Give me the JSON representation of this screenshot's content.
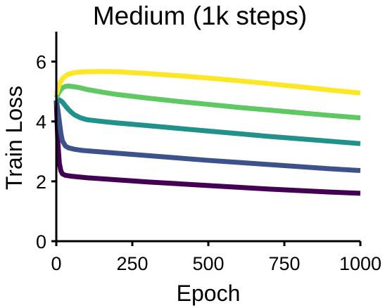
{
  "chart_data": {
    "type": "line",
    "title": "Medium (1k steps)",
    "xlabel": "Epoch",
    "ylabel": "Train Loss",
    "xlim": [
      0,
      1000
    ],
    "ylim": [
      0,
      7
    ],
    "xticks": [
      0,
      250,
      500,
      750,
      1000
    ],
    "yticks": [
      0,
      2,
      4,
      6
    ],
    "xtick_labels": [
      "0",
      "250",
      "500",
      "750",
      "1000"
    ],
    "ytick_labels": [
      "0",
      "2",
      "4",
      "6"
    ],
    "grid": false,
    "legend": "none",
    "series": [
      {
        "color": "#440154",
        "x": [
          0,
          5,
          10,
          15,
          20,
          30,
          50,
          100,
          200,
          300,
          400,
          500,
          600,
          700,
          800,
          900,
          1000
        ],
        "y": [
          4.7,
          3.3,
          2.6,
          2.35,
          2.25,
          2.2,
          2.17,
          2.12,
          2.05,
          1.98,
          1.92,
          1.86,
          1.8,
          1.74,
          1.69,
          1.64,
          1.6
        ]
      },
      {
        "color": "#3b528b",
        "x": [
          0,
          5,
          10,
          15,
          20,
          30,
          40,
          60,
          80,
          100,
          150,
          200,
          300,
          400,
          500,
          600,
          700,
          800,
          900,
          1000
        ],
        "y": [
          4.7,
          4.4,
          4.0,
          3.6,
          3.35,
          3.18,
          3.12,
          3.07,
          3.04,
          3.02,
          2.98,
          2.94,
          2.86,
          2.78,
          2.7,
          2.63,
          2.56,
          2.49,
          2.42,
          2.36
        ]
      },
      {
        "color": "#21918c",
        "x": [
          0,
          10,
          20,
          30,
          40,
          50,
          60,
          80,
          100,
          150,
          200,
          300,
          400,
          500,
          600,
          700,
          800,
          900,
          1000
        ],
        "y": [
          4.7,
          4.72,
          4.65,
          4.52,
          4.4,
          4.3,
          4.22,
          4.12,
          4.06,
          4.0,
          3.95,
          3.86,
          3.77,
          3.68,
          3.59,
          3.5,
          3.42,
          3.34,
          3.26
        ]
      },
      {
        "color": "#5ec962",
        "x": [
          0,
          10,
          20,
          30,
          40,
          60,
          80,
          100,
          150,
          200,
          300,
          400,
          500,
          600,
          700,
          800,
          900,
          1000
        ],
        "y": [
          4.8,
          5.0,
          5.12,
          5.17,
          5.18,
          5.16,
          5.12,
          5.07,
          4.98,
          4.9,
          4.78,
          4.67,
          4.57,
          4.47,
          4.38,
          4.29,
          4.2,
          4.12
        ]
      },
      {
        "color": "#fde725",
        "x": [
          0,
          10,
          20,
          30,
          40,
          60,
          80,
          100,
          150,
          200,
          250,
          300,
          400,
          500,
          600,
          700,
          800,
          900,
          1000
        ],
        "y": [
          4.9,
          5.25,
          5.42,
          5.52,
          5.58,
          5.63,
          5.65,
          5.66,
          5.67,
          5.66,
          5.63,
          5.6,
          5.53,
          5.45,
          5.36,
          5.26,
          5.16,
          5.05,
          4.95
        ]
      }
    ]
  }
}
